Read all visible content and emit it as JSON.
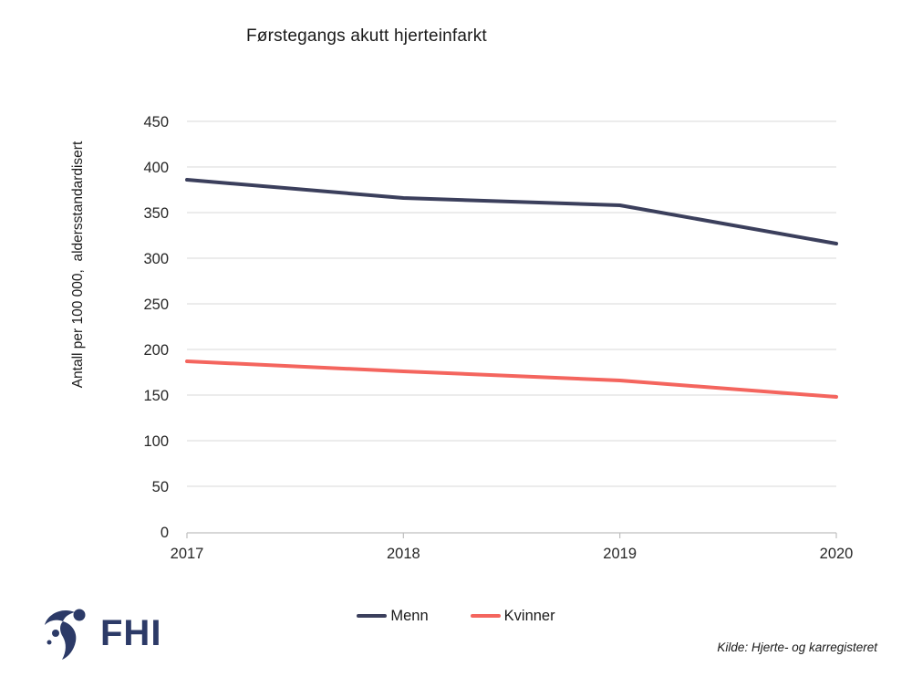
{
  "title": "Førstegangs akutt hjerteinfarkt",
  "y_axis_title": "Antall per 100 000,  aldersstandardisert",
  "source": "Kilde: Hjerte- og karregisteret",
  "logo": {
    "text": "FHI",
    "icon": "fhi-person-swoosh-icon",
    "color": "#2C3A67"
  },
  "legend": [
    {
      "name": "Menn",
      "color": "#3B3F5C"
    },
    {
      "name": "Kvinner",
      "color": "#F4655E"
    }
  ],
  "colors": {
    "grid": "#D9D9D9",
    "axis": "#BFBFBF",
    "tick_text": "#262626",
    "menn": "#3B3F5C",
    "kvinner": "#F4655E"
  },
  "chart_data": {
    "type": "line",
    "categories": [
      "2017",
      "2018",
      "2019",
      "2020"
    ],
    "series": [
      {
        "name": "Menn",
        "color": "#3B3F5C",
        "values": [
          386,
          366,
          358,
          316
        ]
      },
      {
        "name": "Kvinner",
        "color": "#F4655E",
        "values": [
          187,
          176,
          166,
          148
        ]
      }
    ],
    "title": "Førstegangs akutt hjerteinfarkt",
    "xlabel": "",
    "ylabel": "Antall per 100 000,  aldersstandardisert",
    "ylim": [
      0,
      450
    ],
    "ytick_step": 50,
    "grid": true,
    "legend_position": "bottom"
  }
}
